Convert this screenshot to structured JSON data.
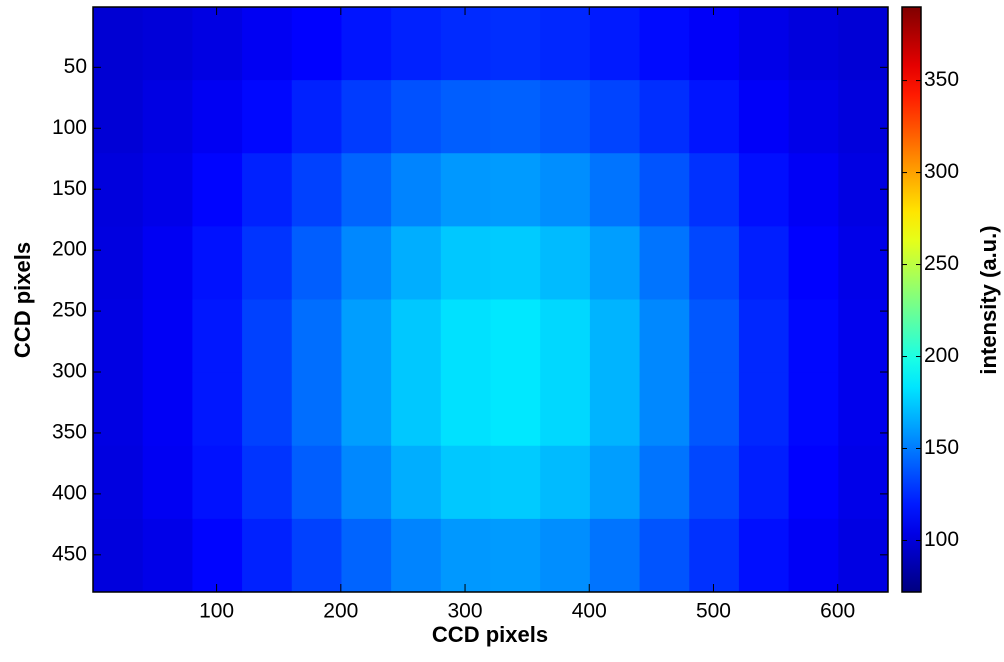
{
  "chart_data": {
    "type": "heatmap",
    "xlabel": "CCD pixels",
    "ylabel": "CCD pixels",
    "colorbar_label": "intensity (a.u.)",
    "colormap": "jet",
    "xlim": [
      0.5,
      640.5
    ],
    "xticks": [
      100,
      200,
      300,
      400,
      500,
      600
    ],
    "ylim": [
      0.5,
      480.5
    ],
    "yticks": [
      50,
      100,
      150,
      200,
      250,
      300,
      350,
      400,
      450
    ],
    "y_reversed": true,
    "clim": [
      72,
      390
    ],
    "cticks": [
      100,
      150,
      200,
      250,
      300,
      350
    ],
    "z": [
      [
        98,
        100,
        103,
        108,
        112,
        118,
        122,
        125,
        126,
        124,
        120,
        115,
        110,
        105,
        101,
        99
      ],
      [
        99,
        103,
        108,
        114,
        122,
        130,
        137,
        141,
        142,
        139,
        133,
        126,
        118,
        110,
        105,
        101
      ],
      [
        101,
        105,
        113,
        122,
        132,
        143,
        153,
        159,
        160,
        156,
        148,
        138,
        127,
        116,
        109,
        103
      ],
      [
        102,
        108,
        117,
        128,
        141,
        154,
        166,
        174,
        175,
        170,
        161,
        148,
        134,
        121,
        112,
        105
      ],
      [
        103,
        109,
        119,
        132,
        146,
        161,
        174,
        182,
        184,
        179,
        168,
        154,
        139,
        124,
        114,
        106
      ],
      [
        103,
        109,
        119,
        132,
        146,
        161,
        174,
        182,
        184,
        179,
        168,
        154,
        139,
        124,
        114,
        106
      ],
      [
        102,
        108,
        117,
        128,
        141,
        154,
        166,
        174,
        175,
        170,
        161,
        148,
        134,
        121,
        112,
        105
      ],
      [
        101,
        105,
        113,
        122,
        132,
        143,
        153,
        159,
        160,
        156,
        148,
        138,
        127,
        116,
        109,
        103
      ]
    ]
  }
}
